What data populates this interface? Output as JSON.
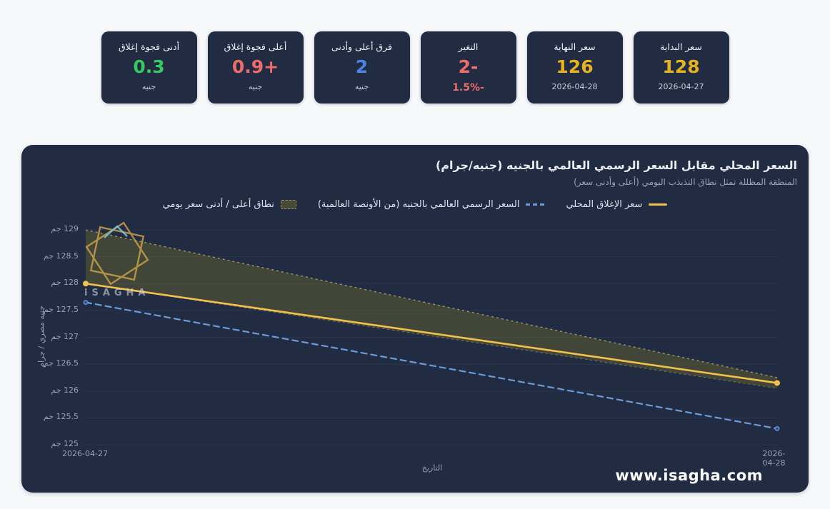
{
  "page": {
    "background": "#f7f8fa"
  },
  "cards": [
    {
      "label": "سعر البداية",
      "value": "128",
      "value_color": "#e5b322",
      "sub": "2026-04-27",
      "sub_color": "#c8cfdb",
      "sub_large": false
    },
    {
      "label": "سعر النهاية",
      "value": "126",
      "value_color": "#e5b322",
      "sub": "2026-04-28",
      "sub_color": "#c8cfdb",
      "sub_large": false
    },
    {
      "label": "التغير",
      "value": "-2",
      "value_color": "#ef6c6c",
      "sub": "-1.5%",
      "sub_color": "#ef6c6c",
      "sub_large": true
    },
    {
      "label": "فرق أعلى وأدنى",
      "value": "2",
      "value_color": "#4b84e6",
      "sub": "جنيه",
      "sub_color": "#c8cfdb",
      "sub_large": false
    },
    {
      "label": "أعلى فجوة إغلاق",
      "value": "+0.9",
      "value_color": "#ef6c6c",
      "sub": "جنيه",
      "sub_color": "#c8cfdb",
      "sub_large": false
    },
    {
      "label": "أدنى فجوة إغلاق",
      "value": "0.3",
      "value_color": "#37c864",
      "sub": "جنيه",
      "sub_color": "#c8cfdb",
      "sub_large": false
    }
  ],
  "chart_panel": {
    "background": "#212c42",
    "title": "السعر المحلي مقابل السعر الرسمي العالمي بالجنيه (جنيه/جرام)",
    "subtitle": "المنطقة المظللة تمثل نطاق التذبذب اليومي (أعلى وأدنى سعر)",
    "watermark_text": "iSAGHA",
    "website": "www.isagha.com"
  },
  "chart_data": {
    "type": "line",
    "title": "السعر المحلي مقابل السعر الرسمي العالمي بالجنيه (جنيه/جرام)",
    "subtitle": "المنطقة المظللة تمثل نطاق التذبذب اليومي (أعلى وأدنى سعر)",
    "x": [
      "2026-04-27",
      "2026-04-28"
    ],
    "xlabel": "التاريخ",
    "ylabel": "جنيه مصري / جرام",
    "ylim": [
      125,
      129
    ],
    "yticks": [
      125,
      125.5,
      126,
      126.5,
      127,
      127.5,
      128,
      128.5,
      129
    ],
    "ytick_suffix": "جم",
    "grid": true,
    "legend_position": "top",
    "series": [
      {
        "name": "سعر الإغلاق المحلي",
        "type": "line",
        "line_style": "solid",
        "color": "#f2c14e",
        "values": [
          128,
          126.15
        ]
      },
      {
        "name": "السعر الرسمي العالمي بالجنيه (من الأونصة العالمية)",
        "type": "line",
        "line_style": "dashed",
        "color": "#6b9bd8",
        "values": [
          127.65,
          125.3
        ]
      },
      {
        "name": "نطاق أعلى / أدنى سعر يومي",
        "type": "band",
        "color": "#8d8623",
        "high": [
          129,
          126.25
        ],
        "low": [
          128,
          126.05
        ]
      }
    ]
  }
}
